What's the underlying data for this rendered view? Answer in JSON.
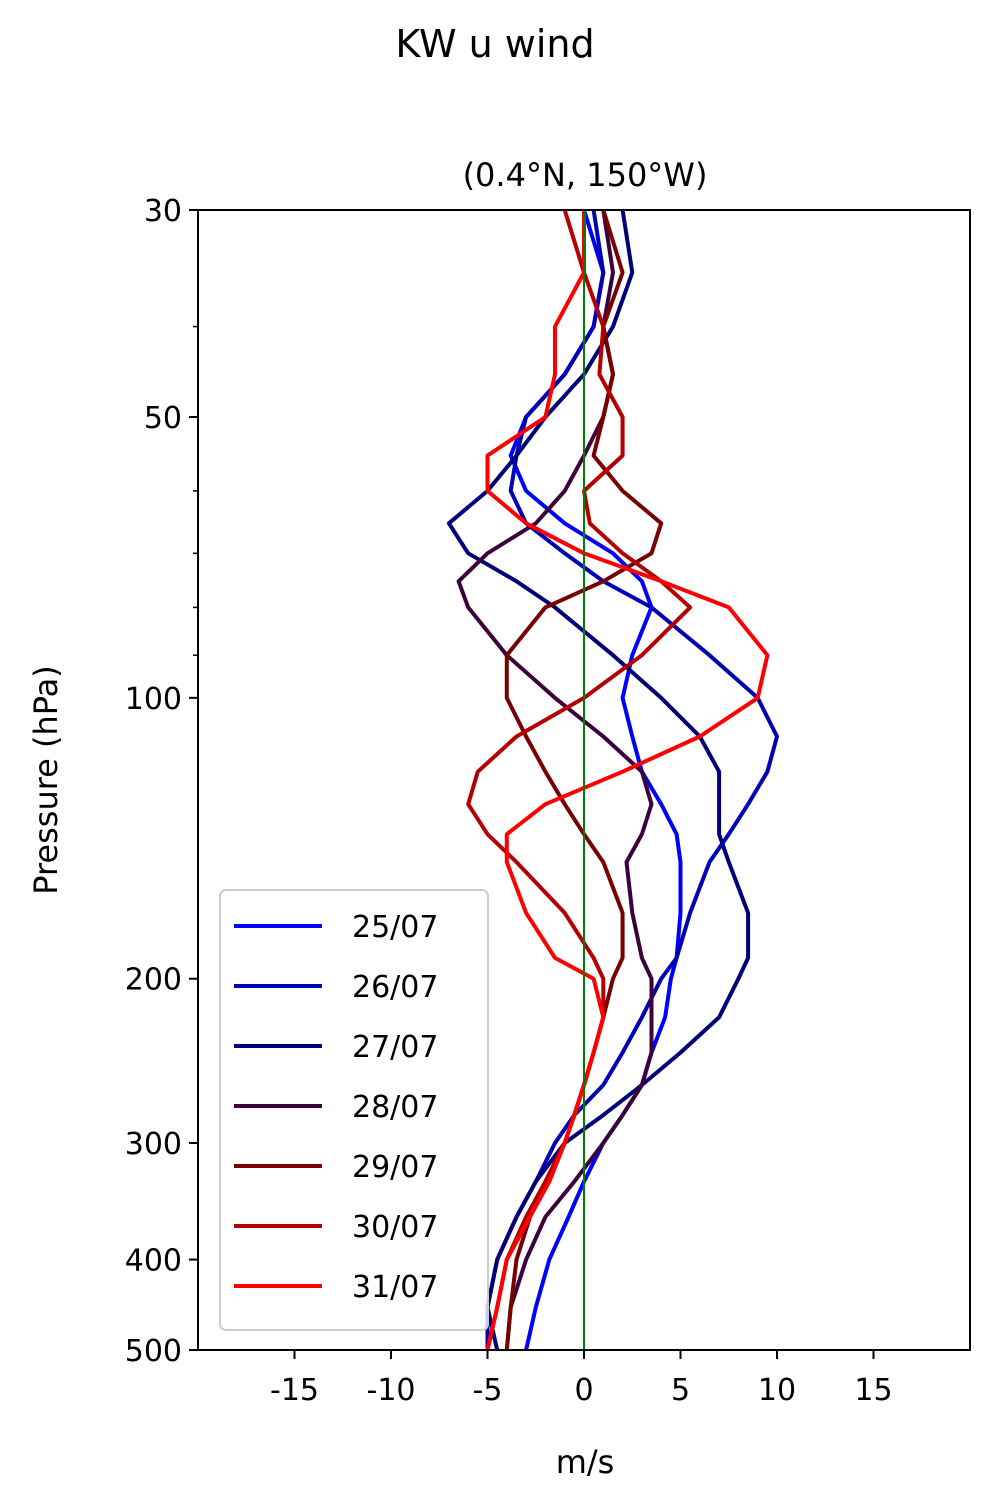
{
  "figure": {
    "suptitle": "KW u wind"
  },
  "chart_data": {
    "type": "line",
    "title": "(0.4°N, 150°W)",
    "xlabel": "m/s",
    "ylabel": "Pressure (hPa)",
    "xlim": [
      -20,
      20
    ],
    "ylim": [
      500,
      30
    ],
    "yscale": "log",
    "xticks": [
      -15,
      -10,
      -5,
      0,
      5,
      10,
      15
    ],
    "xtick_labels": [
      "-15",
      "-10",
      "-5",
      "0",
      "5",
      "10",
      "15"
    ],
    "yticks": [
      30,
      50,
      100,
      200,
      300,
      400,
      500
    ],
    "ytick_labels": [
      "30",
      "50",
      "100",
      "200",
      "300",
      "400",
      "500"
    ],
    "yminor_ticks": [
      40,
      60,
      70,
      80,
      90
    ],
    "reference_line": {
      "x": 0,
      "color": "#008000"
    },
    "grid": false,
    "legend_position": "lower-left",
    "pressure": [
      30,
      35,
      40,
      45,
      50,
      55,
      60,
      65,
      70,
      75,
      80,
      90,
      100,
      110,
      120,
      130,
      140,
      150,
      170,
      190,
      200,
      220,
      240,
      260,
      280,
      300,
      330,
      360,
      400,
      450,
      500
    ],
    "series": [
      {
        "name": "25/07",
        "color": "#0000ff",
        "values": [
          0.0,
          1.0,
          0.5,
          -1.0,
          -3.0,
          -3.8,
          -3.0,
          -1.0,
          1.5,
          3.0,
          3.5,
          2.5,
          2.0,
          2.5,
          3.0,
          4.0,
          4.8,
          5.0,
          5.0,
          4.8,
          4.5,
          4.2,
          3.5,
          3.0,
          2.0,
          1.0,
          0.0,
          -0.8,
          -1.8,
          -2.5,
          -3.0
        ]
      },
      {
        "name": "26/07",
        "color": "#0000b4",
        "values": [
          0.5,
          1.0,
          0.5,
          -1.0,
          -3.0,
          -3.5,
          -3.8,
          -3.0,
          -1.0,
          1.0,
          3.5,
          6.5,
          9.0,
          10.0,
          9.5,
          8.5,
          7.5,
          6.5,
          5.5,
          4.8,
          4.0,
          3.0,
          2.0,
          1.0,
          -0.5,
          -1.5,
          -2.5,
          -3.5,
          -4.5,
          -5.0,
          -5.0
        ]
      },
      {
        "name": "27/07",
        "color": "#000078",
        "values": [
          2.0,
          2.5,
          1.5,
          0.0,
          -2.0,
          -3.5,
          -5.0,
          -7.0,
          -6.0,
          -3.5,
          -1.5,
          1.5,
          4.0,
          6.0,
          7.0,
          7.0,
          7.0,
          7.5,
          8.5,
          8.5,
          8.0,
          7.0,
          5.0,
          3.0,
          1.0,
          -1.0,
          -2.5,
          -3.5,
          -4.5,
          -5.0,
          -4.5
        ]
      },
      {
        "name": "28/07",
        "color": "#3c003c",
        "values": [
          1.0,
          1.5,
          1.0,
          1.5,
          1.0,
          0.0,
          -1.0,
          -2.5,
          -5.0,
          -6.5,
          -6.0,
          -4.0,
          -1.5,
          1.0,
          3.0,
          3.5,
          3.0,
          2.2,
          2.5,
          3.0,
          3.5,
          3.5,
          3.5,
          3.0,
          2.0,
          1.0,
          -0.5,
          -2.0,
          -3.0,
          -3.8,
          -4.0
        ]
      },
      {
        "name": "29/07",
        "color": "#780000",
        "values": [
          1.0,
          2.0,
          1.0,
          1.5,
          1.0,
          0.5,
          2.0,
          4.0,
          3.5,
          1.0,
          -2.0,
          -4.0,
          -4.0,
          -3.0,
          -2.0,
          -1.0,
          0.0,
          1.0,
          2.0,
          2.0,
          1.5,
          1.0,
          0.5,
          0.0,
          -0.5,
          -1.0,
          -2.0,
          -2.8,
          -3.5,
          -3.8,
          -4.0
        ]
      },
      {
        "name": "30/07",
        "color": "#b40000",
        "values": [
          -1.0,
          0.0,
          1.0,
          0.8,
          2.0,
          2.0,
          0.0,
          0.3,
          2.0,
          4.0,
          5.5,
          3.0,
          0.0,
          -3.5,
          -5.5,
          -6.0,
          -5.0,
          -3.5,
          -1.0,
          0.5,
          1.0,
          1.0,
          0.5,
          0.0,
          -0.5,
          -1.0,
          -2.0,
          -3.0,
          -4.0,
          -4.5,
          -5.0
        ]
      },
      {
        "name": "31/07",
        "color": "#ff0000",
        "values": [
          0.0,
          0.0,
          -1.5,
          -1.5,
          -2.0,
          -5.0,
          -5.0,
          -3.0,
          0.0,
          4.0,
          7.5,
          9.5,
          9.0,
          6.0,
          2.0,
          -2.0,
          -4.0,
          -4.0,
          -3.0,
          -1.5,
          0.5,
          1.0,
          0.5,
          0.0,
          -0.5,
          -1.0,
          -1.8,
          -2.8,
          -4.0,
          -4.5,
          -5.0
        ]
      }
    ]
  }
}
